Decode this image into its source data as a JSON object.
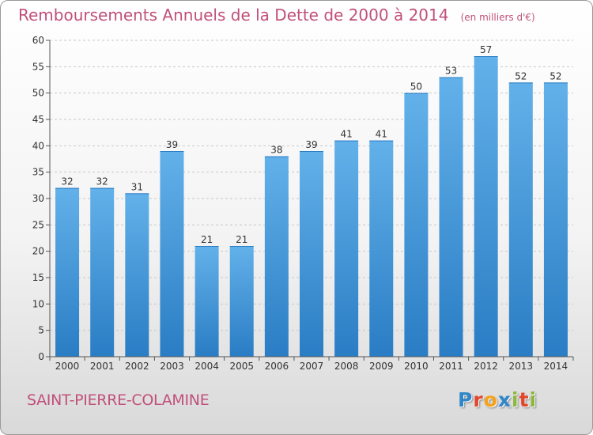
{
  "title": "Remboursements Annuels de la Dette de 2000 à 2014",
  "unit_note": "(en milliers d'€)",
  "commune": "SAINT-PIERRE-COLAMINE",
  "logo": {
    "text": "Proxiti",
    "letters": [
      {
        "ch": "P",
        "color": "#2f86c8"
      },
      {
        "ch": "r",
        "color": "#e0472c"
      },
      {
        "ch": "o",
        "color": "#f4a21b"
      },
      {
        "ch": "x",
        "color": "#2f86c8"
      },
      {
        "ch": "i",
        "color": "#8ab83a"
      },
      {
        "ch": "t",
        "color": "#e0472c"
      },
      {
        "ch": "i",
        "color": "#8ab83a"
      }
    ]
  },
  "colors": {
    "bar_light": "#63b1ea",
    "bar_dark": "#2a7dc4",
    "accent": "#c0507a"
  },
  "chart_data": {
    "type": "bar",
    "title": "Remboursements Annuels de la Dette de 2000 à 2014",
    "xlabel": "",
    "ylabel": "",
    "categories": [
      "2000",
      "2001",
      "2002",
      "2003",
      "2004",
      "2005",
      "2006",
      "2007",
      "2008",
      "2009",
      "2010",
      "2011",
      "2012",
      "2013",
      "2014"
    ],
    "values": [
      32,
      32,
      31,
      39,
      21,
      21,
      38,
      39,
      41,
      41,
      50,
      53,
      57,
      52,
      52
    ],
    "ylim": [
      0,
      60
    ],
    "yticks": [
      0,
      5,
      10,
      15,
      20,
      25,
      30,
      35,
      40,
      45,
      50,
      55,
      60
    ],
    "grid": true,
    "data_labels": true
  }
}
